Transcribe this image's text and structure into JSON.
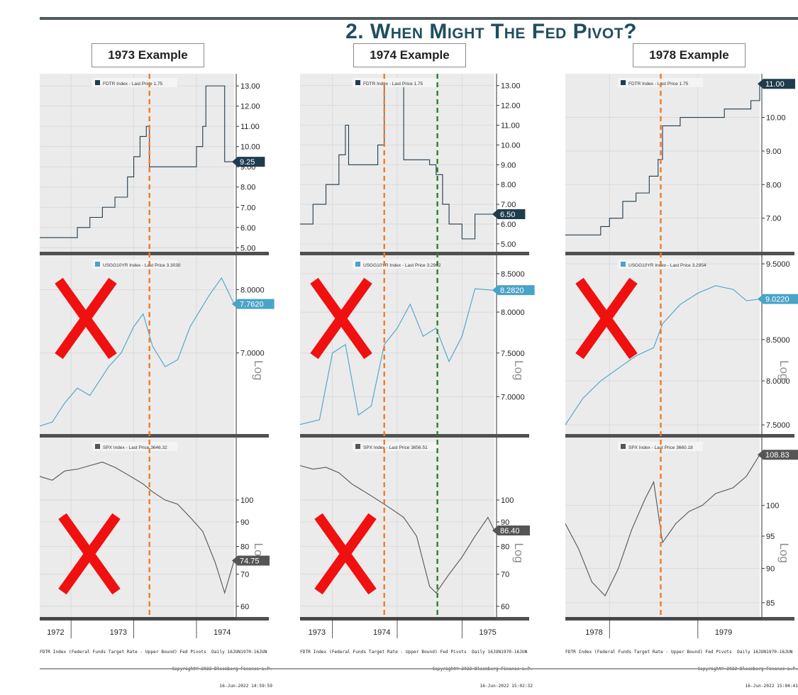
{
  "title": "2. When Might The Fed Pivot?",
  "examples": [
    {
      "label": "1973 Example",
      "panels": {
        "fdtr": {
          "legend": "FDTR Index - Last Price  1.75",
          "last_label": "9.25",
          "ticks": [
            "13.00",
            "12.00",
            "11.00",
            "10.00",
            "9.00",
            "8.00",
            "7.00",
            "6.00",
            "5.00"
          ]
        },
        "usgg": {
          "legend": "USGG10YR Index - Last Price  3.3030",
          "last_label": "7.7620",
          "ticks": [
            "8.0000",
            "7.0000"
          ],
          "log_label": "Log"
        },
        "spx": {
          "legend": "SPX Index - Last Price  3646.32",
          "last_label": "74.75",
          "ticks": [
            "100",
            "90",
            "80",
            "70",
            "60"
          ],
          "log_label": "Log"
        }
      },
      "x_ticks": [
        "1972",
        "1973",
        "1974"
      ],
      "footer": {
        "line1": "FDTR Index (Federal Funds Target Rate - Upper Bound) Fed Pivots  Daily 16JUN1970-16JUN",
        "line2": "Copyright© 2022 Bloomberg Finance L.P.",
        "line3": "16-Jun-2022 14:59:59"
      }
    },
    {
      "label": "1974 Example",
      "panels": {
        "fdtr": {
          "legend": "FDTR Index - Last Price  1.75",
          "last_label": "6.50",
          "ticks": [
            "13.00",
            "12.00",
            "11.00",
            "10.00",
            "9.00",
            "8.00",
            "7.00",
            "6.00",
            "5.00"
          ]
        },
        "usgg": {
          "legend": "USGG10YR Index - Last Price  3.2992",
          "last_label": "8.2820",
          "ticks": [
            "8.5000",
            "8.0000",
            "7.5000",
            "7.0000"
          ],
          "log_label": "Log"
        },
        "spx": {
          "legend": "SPX Index - Last Price  3656.51",
          "last_label": "86.40",
          "ticks": [
            "100",
            "90",
            "80",
            "70",
            "60"
          ],
          "log_label": "Log"
        }
      },
      "x_ticks": [
        "1973",
        "1974",
        "1975"
      ],
      "footer": {
        "line1": "FDTR Index (Federal Funds Target Rate - Upper Bound) Fed Pivots  Daily 16JUN1970-16JUN",
        "line2": "Copyright© 2022 Bloomberg Finance L.P.",
        "line3": "16-Jun-2022 15:02:32"
      }
    },
    {
      "label": "1978 Example",
      "panels": {
        "fdtr": {
          "legend": "FDTR Index - Last Price  1.75",
          "last_label": "11.00",
          "ticks": [
            "10.00",
            "9.00",
            "8.00",
            "7.00"
          ]
        },
        "usgg": {
          "legend": "USGG10YR Index - Last Price  3.2954",
          "last_label": "9.0220",
          "ticks": [
            "9.5000",
            "8.5000",
            "8.0000",
            "7.5000"
          ],
          "log_label": "Log"
        },
        "spx": {
          "legend": "SPX Index - Last Price  3660.18",
          "last_label": "108.83",
          "ticks": [
            "100",
            "95",
            "90",
            "85"
          ],
          "log_label": "Log"
        }
      },
      "x_ticks": [
        "1978",
        "1979"
      ],
      "footer": {
        "line1": "FDTR Index (Federal Funds Target Rate - Upper Bound) Fed Pivots  Daily 16JUN1970-16JUN",
        "line2": "Copyright© 2022 Bloomberg Finance L.P.",
        "line3": "16-Jun-2022 15:04:41"
      }
    }
  ],
  "colors": {
    "fdtr_line": "#1f3c4e",
    "usgg_line": "#4aa3c8",
    "spx_line": "#555555",
    "pivot_orange": "#f07a2a",
    "pivot_green": "#2e7d32",
    "x_mark": "#f01010",
    "panel_bg": "#ebebeb",
    "separator": "#505050"
  },
  "chart_data": [
    {
      "type": "line",
      "title": "1973 Example",
      "x_ticks": [
        "1972",
        "1973",
        "1974"
      ],
      "series": [
        {
          "name": "FDTR Index - Last Price  1.75",
          "scale": "linear",
          "last": 9.25,
          "x": [
            1971.5,
            1972.0,
            1972.1,
            1972.3,
            1972.5,
            1972.7,
            1972.9,
            1973.0,
            1973.1,
            1973.2,
            1973.25,
            1973.5,
            1973.75,
            1974.0,
            1974.1,
            1974.15,
            1974.3,
            1974.45,
            1974.6
          ],
          "values": [
            5.5,
            5.5,
            6.0,
            6.5,
            7.0,
            7.5,
            8.5,
            9.5,
            10.5,
            11.0,
            9.0,
            9.0,
            9.0,
            10.0,
            11.0,
            13.0,
            13.0,
            9.25,
            9.25
          ]
        },
        {
          "name": "USGG10YR Index - Last Price  3.3030",
          "scale": "log",
          "last": 7.762,
          "x": [
            1971.5,
            1971.7,
            1971.9,
            1972.1,
            1972.3,
            1972.6,
            1972.8,
            1973.0,
            1973.15,
            1973.3,
            1973.5,
            1973.7,
            1973.9,
            1974.2,
            1974.4,
            1974.6
          ],
          "values": [
            6.0,
            6.05,
            6.3,
            6.5,
            6.4,
            6.8,
            7.0,
            7.4,
            7.6,
            7.1,
            6.8,
            6.9,
            7.4,
            7.9,
            8.2,
            7.76
          ]
        },
        {
          "name": "SPX Index - Last Price  3646.32",
          "scale": "log",
          "last": 74.75,
          "x": [
            1971.5,
            1971.7,
            1971.9,
            1972.1,
            1972.3,
            1972.5,
            1972.7,
            1972.9,
            1973.0,
            1973.15,
            1973.3,
            1973.5,
            1973.7,
            1973.9,
            1974.1,
            1974.3,
            1974.45,
            1974.6
          ],
          "values": [
            112,
            110,
            115,
            116,
            118,
            120,
            117,
            113,
            111,
            108,
            104,
            100,
            98,
            92,
            86,
            74,
            64,
            74.75
          ]
        }
      ],
      "pivot_lines": [
        "orange"
      ]
    },
    {
      "type": "line",
      "title": "1974 Example",
      "x_ticks": [
        "1973",
        "1974",
        "1975"
      ],
      "series": [
        {
          "name": "FDTR Index - Last Price  1.75",
          "scale": "linear",
          "last": 6.5,
          "x": [
            1972.5,
            1972.7,
            1972.9,
            1973.1,
            1973.2,
            1973.25,
            1973.5,
            1973.7,
            1973.8,
            1974.0,
            1974.1,
            1974.3,
            1974.5,
            1974.6,
            1974.7,
            1974.8,
            1975.0,
            1975.2,
            1975.5
          ],
          "values": [
            6.0,
            7.0,
            8.0,
            9.5,
            11.0,
            9.0,
            9.0,
            10.0,
            13.0,
            13.0,
            9.25,
            9.25,
            9.0,
            8.5,
            7.0,
            6.0,
            5.25,
            6.5,
            6.5
          ]
        },
        {
          "name": "USGG10YR Index - Last Price  3.2992",
          "scale": "log",
          "last": 8.282,
          "x": [
            1972.5,
            1972.8,
            1973.0,
            1973.2,
            1973.4,
            1973.6,
            1973.8,
            1974.0,
            1974.2,
            1974.4,
            1974.6,
            1974.8,
            1975.0,
            1975.2,
            1975.5
          ],
          "values": [
            6.7,
            6.75,
            7.5,
            7.6,
            6.8,
            6.9,
            7.6,
            7.8,
            8.1,
            7.7,
            7.8,
            7.4,
            7.7,
            8.3,
            8.28
          ]
        },
        {
          "name": "SPX Index - Last Price  3656.51",
          "scale": "log",
          "last": 86.4,
          "x": [
            1972.5,
            1972.7,
            1972.9,
            1973.1,
            1973.3,
            1973.5,
            1973.7,
            1973.9,
            1974.1,
            1974.3,
            1974.5,
            1974.6,
            1974.8,
            1975.0,
            1975.2,
            1975.4,
            1975.5
          ],
          "values": [
            118,
            116,
            117,
            114,
            108,
            104,
            100,
            96,
            92,
            84,
            66,
            64,
            70,
            76,
            84,
            92,
            86.4
          ]
        }
      ],
      "pivot_lines": [
        "orange",
        "green"
      ]
    },
    {
      "type": "line",
      "title": "1978 Example",
      "x_ticks": [
        "1978",
        "1979"
      ],
      "series": [
        {
          "name": "FDTR Index - Last Price  1.75",
          "scale": "linear",
          "last": 11.0,
          "x": [
            1977.5,
            1977.7,
            1977.9,
            1978.0,
            1978.15,
            1978.3,
            1978.45,
            1978.55,
            1978.6,
            1978.8,
            1979.0,
            1979.3,
            1979.6,
            1979.7
          ],
          "values": [
            6.5,
            6.5,
            6.75,
            7.0,
            7.5,
            7.75,
            8.25,
            8.75,
            9.75,
            10.0,
            10.0,
            10.25,
            10.5,
            11.0
          ]
        },
        {
          "name": "USGG10YR Index - Last Price  3.2954",
          "scale": "log",
          "last": 9.022,
          "x": [
            1977.5,
            1977.7,
            1977.9,
            1978.1,
            1978.3,
            1978.5,
            1978.6,
            1978.8,
            1979.0,
            1979.2,
            1979.4,
            1979.55,
            1979.7
          ],
          "values": [
            7.5,
            7.8,
            8.0,
            8.15,
            8.3,
            8.4,
            8.7,
            8.95,
            9.1,
            9.2,
            9.15,
            9.0,
            9.02
          ]
        },
        {
          "name": "SPX Index - Last Price  3660.18",
          "scale": "log",
          "last": 108.83,
          "x": [
            1977.5,
            1977.65,
            1977.8,
            1977.95,
            1978.1,
            1978.25,
            1978.4,
            1978.5,
            1978.6,
            1978.75,
            1978.9,
            1979.05,
            1979.2,
            1979.4,
            1979.55,
            1979.7
          ],
          "values": [
            97,
            93,
            88,
            86,
            90,
            96,
            101,
            104,
            94,
            97,
            99,
            100,
            102,
            103,
            105,
            108.83
          ]
        }
      ],
      "pivot_lines": [
        "orange"
      ]
    }
  ]
}
